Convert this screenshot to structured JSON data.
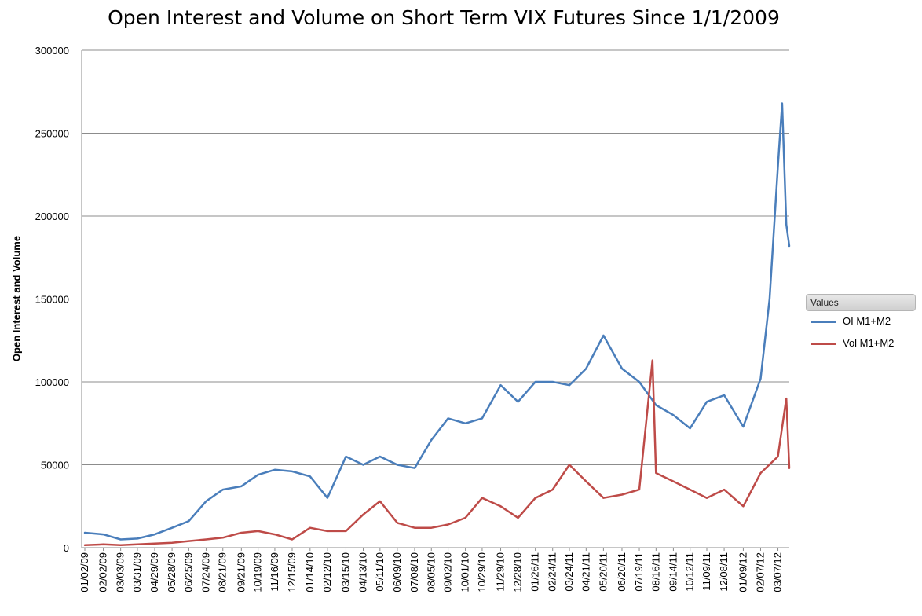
{
  "chart_data": {
    "type": "line",
    "title": "Open Interest and Volume on Short Term VIX Futures Since 1/1/2009",
    "xlabel": "",
    "ylabel": "Open Interest and Volume",
    "ylim": [
      0,
      300000
    ],
    "yticks": [
      0,
      50000,
      100000,
      150000,
      200000,
      250000,
      300000
    ],
    "grid": "horizontal",
    "legend": {
      "title": "Values",
      "placement": "right"
    },
    "x_tick_labels": [
      "01/02/09",
      "02/02/09",
      "03/03/09",
      "03/31/09",
      "04/29/09",
      "05/28/09",
      "06/25/09",
      "07/24/09",
      "08/21/09",
      "09/21/09",
      "10/19/09",
      "11/16/09",
      "12/15/09",
      "01/14/10",
      "02/12/10",
      "03/15/10",
      "04/13/10",
      "05/11/10",
      "06/09/10",
      "07/08/10",
      "08/05/10",
      "09/02/10",
      "10/01/10",
      "10/29/10",
      "11/29/10",
      "12/28/10",
      "01/26/11",
      "02/24/11",
      "03/24/11",
      "04/21/11",
      "05/20/11",
      "06/20/11",
      "07/19/11",
      "08/16/11",
      "09/14/11",
      "10/12/11",
      "11/09/11",
      "12/08/11",
      "01/09/12",
      "02/07/12",
      "03/07/12"
    ],
    "series": [
      {
        "name": "OI M1+M2",
        "color": "#4a7ebb",
        "x": [
          "01/02/09",
          "02/02/09",
          "03/03/09",
          "03/31/09",
          "04/29/09",
          "05/28/09",
          "06/25/09",
          "07/24/09",
          "08/21/09",
          "09/21/09",
          "10/19/09",
          "11/16/09",
          "12/15/09",
          "01/14/10",
          "02/12/10",
          "03/15/10",
          "04/13/10",
          "05/11/10",
          "06/09/10",
          "07/08/10",
          "08/05/10",
          "09/02/10",
          "10/01/10",
          "10/29/10",
          "11/29/10",
          "12/28/10",
          "01/26/11",
          "02/24/11",
          "03/24/11",
          "04/21/11",
          "05/20/11",
          "06/20/11",
          "07/19/11",
          "08/16/11",
          "09/14/11",
          "10/12/11",
          "11/09/11",
          "12/08/11",
          "01/09/12",
          "02/07/12",
          "02/22/12",
          "03/07/12",
          "03/14/12",
          "03/21/12",
          "03/26/12"
        ],
        "values": [
          9000,
          8000,
          5000,
          5500,
          8000,
          12000,
          16000,
          28000,
          35000,
          37000,
          44000,
          47000,
          46000,
          43000,
          30000,
          55000,
          50000,
          55000,
          50000,
          48000,
          65000,
          78000,
          75000,
          78000,
          98000,
          88000,
          100000,
          100000,
          98000,
          108000,
          128000,
          108000,
          100000,
          86000,
          80000,
          72000,
          88000,
          92000,
          73000,
          102000,
          150000,
          230000,
          268000,
          195000,
          182000
        ]
      },
      {
        "name": "Vol M1+M2",
        "color": "#be4b48",
        "x": [
          "01/02/09",
          "02/02/09",
          "03/03/09",
          "03/31/09",
          "04/29/09",
          "05/28/09",
          "06/25/09",
          "07/24/09",
          "08/21/09",
          "09/21/09",
          "10/19/09",
          "11/16/09",
          "12/15/09",
          "01/14/10",
          "02/12/10",
          "03/15/10",
          "04/13/10",
          "05/11/10",
          "06/09/10",
          "07/08/10",
          "08/05/10",
          "09/02/10",
          "10/01/10",
          "10/29/10",
          "11/29/10",
          "12/28/10",
          "01/26/11",
          "02/24/11",
          "03/24/11",
          "04/21/11",
          "05/20/11",
          "06/20/11",
          "07/19/11",
          "08/10/11",
          "08/16/11",
          "09/14/11",
          "10/12/11",
          "11/09/11",
          "12/08/11",
          "01/09/12",
          "02/07/12",
          "03/07/12",
          "03/21/12",
          "03/26/12"
        ],
        "values": [
          1500,
          2000,
          1500,
          2000,
          2500,
          3000,
          4000,
          5000,
          6000,
          9000,
          10000,
          8000,
          5000,
          12000,
          10000,
          10000,
          20000,
          28000,
          15000,
          12000,
          12000,
          14000,
          18000,
          30000,
          25000,
          18000,
          30000,
          35000,
          50000,
          40000,
          30000,
          32000,
          35000,
          113000,
          45000,
          40000,
          35000,
          30000,
          35000,
          25000,
          45000,
          55000,
          90000,
          48000
        ]
      }
    ]
  }
}
